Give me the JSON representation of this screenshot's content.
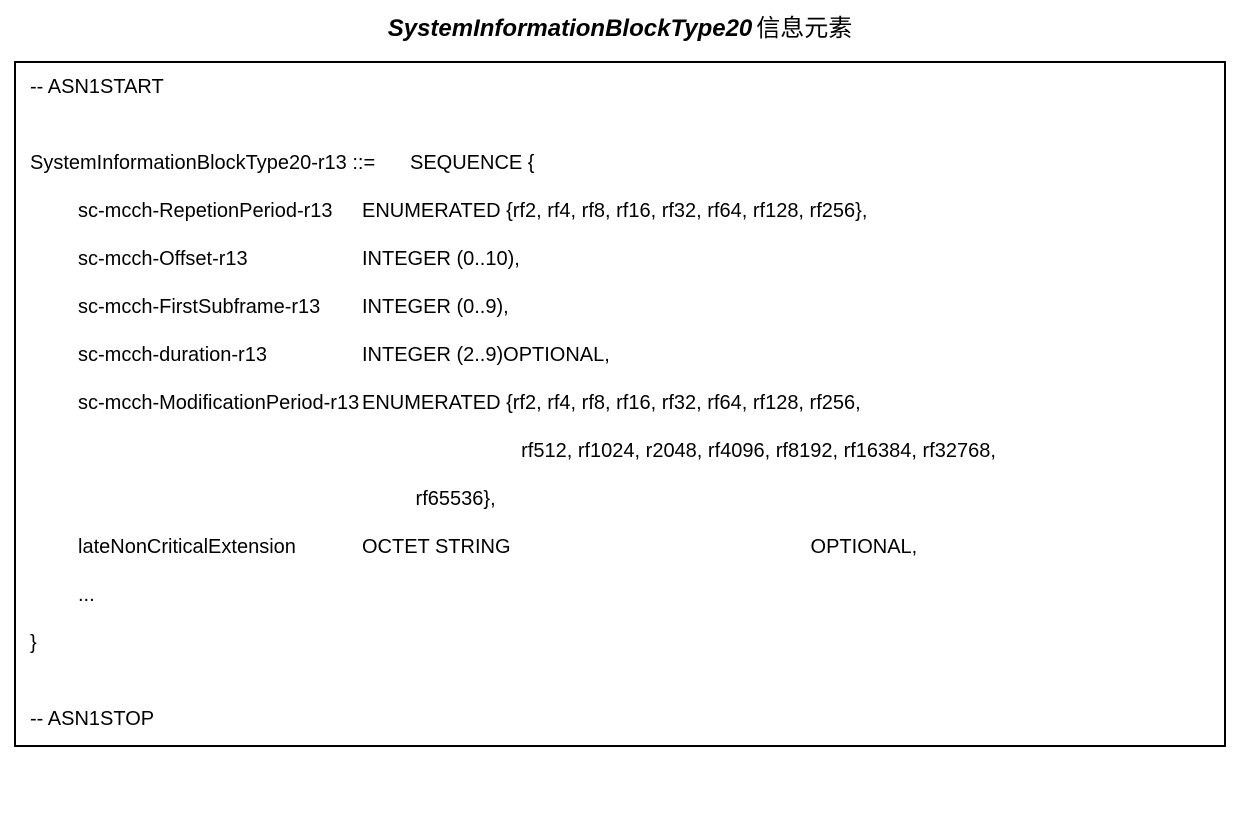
{
  "title": {
    "italic_part": "SystemInformationBlockType20",
    "cjk_part": "信息元素"
  },
  "code": {
    "start_marker": "-- ASN1START",
    "stop_marker": "-- ASN1STOP",
    "type_name": "SystemInformationBlockType20-r13 ::=",
    "sequence_open": "SEQUENCE {",
    "fields": [
      {
        "name": "sc-mcch-RepetionPeriod-r13",
        "type": "ENUMERATED {rf2, rf4, rf8, rf16, rf32, rf64, rf128, rf256},"
      },
      {
        "name": "sc-mcch-Offset-r13",
        "type": "         INTEGER (0..10),"
      },
      {
        "name": "sc-mcch-FirstSubframe-r13",
        "type": "INTEGER (0..9),"
      },
      {
        "name": "sc-mcch-duration-r13",
        "type": "INTEGER (2..9)OPTIONAL,"
      },
      {
        "name": "sc-mcch-ModificationPeriod-r13",
        "type": "ENUMERATED {rf2, rf4, rf8, rf16, rf32, rf64, rf128, rf256,"
      }
    ],
    "continuation_line1": "                    rf512, rf1024, r2048, rf4096, rf8192, rf16384, rf32768,",
    "continuation_line2": " rf65536},",
    "late_ext_name": "lateNonCriticalExtension",
    "late_ext_type": "OCTET STRING",
    "late_ext_optional": "OPTIONAL,",
    "ellipsis": "...",
    "close_brace": "}"
  },
  "style": {
    "text_color": "#000000",
    "background_color": "#ffffff",
    "border_color": "#000000",
    "title_fontsize": 24,
    "code_fontsize": 20,
    "box_border_width": 2
  }
}
